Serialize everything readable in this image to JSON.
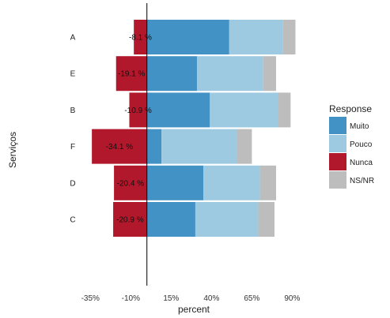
{
  "chart_data": {
    "type": "bar",
    "orientation": "horizontal-diverging",
    "xlabel": "percent",
    "ylabel": "Serviços",
    "xlim": [
      -42,
      105
    ],
    "x_ticks": [
      -35,
      -10,
      15,
      40,
      65,
      90
    ],
    "x_tick_labels": [
      "-35%",
      "-10%",
      "15%",
      "40%",
      "65%",
      "90%"
    ],
    "categories": [
      "A",
      "E",
      "B",
      "F",
      "D",
      "C"
    ],
    "series": [
      {
        "name": "Muito",
        "values": [
          51,
          31,
          39,
          9,
          35,
          30
        ]
      },
      {
        "name": "Pouco",
        "values": [
          33,
          41,
          42,
          47,
          35,
          39
        ]
      },
      {
        "name": "Nunca",
        "values": [
          -8.1,
          -19.1,
          -10.9,
          -34.1,
          -20.4,
          -20.9
        ]
      },
      {
        "name": "NS/NR",
        "values": [
          8,
          8,
          8,
          9,
          10,
          10
        ]
      }
    ],
    "data_labels": [
      "-8.1 %",
      "-19.1 %",
      "-10.9 %",
      "-34.1 %",
      "-20.4 %",
      "-20.9 %"
    ],
    "legend": {
      "title": "Response",
      "position": "right"
    },
    "grid": false
  },
  "colors": {
    "Muito": "#4292c6",
    "Pouco": "#9ecae1",
    "Nunca": "#b2182b",
    "NS/NR": "#bdbdbd"
  }
}
